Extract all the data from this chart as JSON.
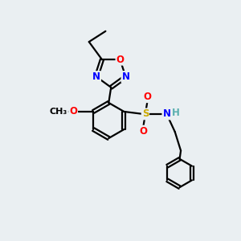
{
  "bg_color": "#eaeff2",
  "bond_color": "#000000",
  "atom_colors": {
    "O": "#ff0000",
    "N": "#0000ff",
    "S": "#ccaa00",
    "H": "#5aafaf",
    "C": "#000000"
  },
  "line_width": 1.6,
  "font_size": 8.5,
  "figsize": [
    3.0,
    3.0
  ],
  "dpi": 100
}
